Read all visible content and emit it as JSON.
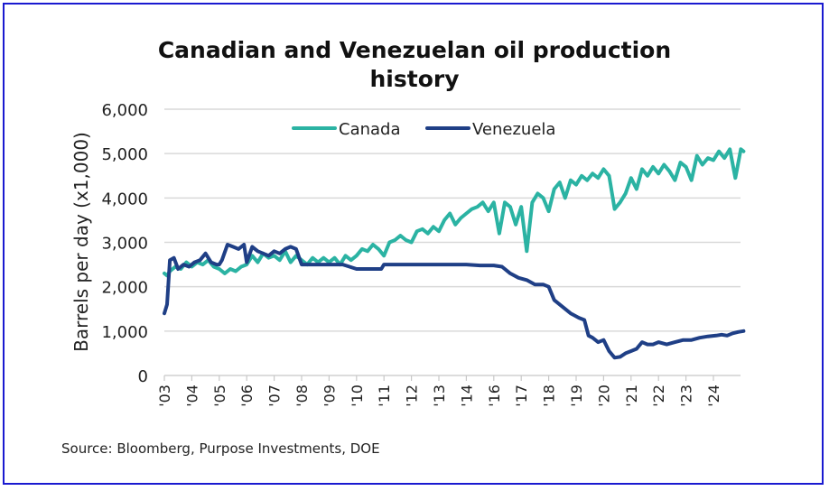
{
  "chart_data": {
    "type": "line",
    "title": "Canadian and Venezuelan oil production history",
    "title_lines": [
      "Canadian and Venezuelan oil production",
      "history"
    ],
    "xlabel": "",
    "ylabel": "Barrels per day (x1,000)",
    "ylim": [
      0,
      6000
    ],
    "yticks": [
      0,
      1000,
      2000,
      3000,
      4000,
      5000,
      6000
    ],
    "ytick_labels": [
      "0",
      "1,000",
      "2,000",
      "3,000",
      "4,000",
      "5,000",
      "6,000"
    ],
    "xtick_labels": [
      "'03",
      "'04",
      "'05",
      "'06",
      "'07",
      "'08",
      "'09",
      "'10",
      "'11",
      "'12",
      "'13",
      "'14",
      "'16",
      "'17",
      "'18",
      "'19",
      "'20",
      "'21",
      "'22",
      "'23",
      "'24"
    ],
    "x_unit": "tick index (each tick = one labeled year)",
    "grid": "horizontal",
    "legend_position": "top-center",
    "series": [
      {
        "name": "Canada",
        "color": "#2bb3a3",
        "points": [
          [
            0,
            2300
          ],
          [
            0.1,
            2250
          ],
          [
            0.2,
            2350
          ],
          [
            0.4,
            2450
          ],
          [
            0.6,
            2400
          ],
          [
            0.8,
            2550
          ],
          [
            1.0,
            2450
          ],
          [
            1.2,
            2550
          ],
          [
            1.4,
            2500
          ],
          [
            1.6,
            2600
          ],
          [
            1.8,
            2450
          ],
          [
            2.0,
            2400
          ],
          [
            2.2,
            2300
          ],
          [
            2.4,
            2400
          ],
          [
            2.6,
            2350
          ],
          [
            2.8,
            2450
          ],
          [
            3.0,
            2500
          ],
          [
            3.2,
            2700
          ],
          [
            3.4,
            2550
          ],
          [
            3.6,
            2750
          ],
          [
            3.8,
            2650
          ],
          [
            4.0,
            2700
          ],
          [
            4.2,
            2600
          ],
          [
            4.4,
            2800
          ],
          [
            4.6,
            2550
          ],
          [
            4.8,
            2700
          ],
          [
            5.0,
            2600
          ],
          [
            5.2,
            2500
          ],
          [
            5.4,
            2650
          ],
          [
            5.6,
            2550
          ],
          [
            5.8,
            2650
          ],
          [
            6.0,
            2550
          ],
          [
            6.2,
            2650
          ],
          [
            6.4,
            2500
          ],
          [
            6.6,
            2700
          ],
          [
            6.8,
            2600
          ],
          [
            7.0,
            2700
          ],
          [
            7.2,
            2850
          ],
          [
            7.4,
            2800
          ],
          [
            7.6,
            2950
          ],
          [
            7.8,
            2850
          ],
          [
            8.0,
            2700
          ],
          [
            8.2,
            3000
          ],
          [
            8.4,
            3050
          ],
          [
            8.6,
            3150
          ],
          [
            8.8,
            3050
          ],
          [
            9.0,
            3000
          ],
          [
            9.2,
            3250
          ],
          [
            9.4,
            3300
          ],
          [
            9.6,
            3200
          ],
          [
            9.8,
            3350
          ],
          [
            10.0,
            3250
          ],
          [
            10.2,
            3500
          ],
          [
            10.4,
            3650
          ],
          [
            10.6,
            3400
          ],
          [
            10.8,
            3550
          ],
          [
            11.0,
            3650
          ],
          [
            11.2,
            3750
          ],
          [
            11.4,
            3800
          ],
          [
            11.6,
            3900
          ],
          [
            11.8,
            3700
          ],
          [
            12.0,
            3900
          ],
          [
            12.2,
            3200
          ],
          [
            12.4,
            3900
          ],
          [
            12.6,
            3800
          ],
          [
            12.8,
            3400
          ],
          [
            13.0,
            3800
          ],
          [
            13.2,
            2800
          ],
          [
            13.4,
            3900
          ],
          [
            13.6,
            4100
          ],
          [
            13.8,
            4000
          ],
          [
            14.0,
            3700
          ],
          [
            14.2,
            4200
          ],
          [
            14.4,
            4350
          ],
          [
            14.6,
            4000
          ],
          [
            14.8,
            4400
          ],
          [
            15.0,
            4300
          ],
          [
            15.2,
            4500
          ],
          [
            15.4,
            4400
          ],
          [
            15.6,
            4550
          ],
          [
            15.8,
            4450
          ],
          [
            16.0,
            4650
          ],
          [
            16.2,
            4500
          ],
          [
            16.4,
            3750
          ],
          [
            16.6,
            3900
          ],
          [
            16.8,
            4100
          ],
          [
            17.0,
            4450
          ],
          [
            17.2,
            4200
          ],
          [
            17.4,
            4650
          ],
          [
            17.6,
            4500
          ],
          [
            17.8,
            4700
          ],
          [
            18.0,
            4550
          ],
          [
            18.2,
            4750
          ],
          [
            18.4,
            4600
          ],
          [
            18.6,
            4400
          ],
          [
            18.8,
            4800
          ],
          [
            19.0,
            4700
          ],
          [
            19.2,
            4400
          ],
          [
            19.4,
            4950
          ],
          [
            19.6,
            4750
          ],
          [
            19.8,
            4900
          ],
          [
            20.0,
            4850
          ],
          [
            20.2,
            5050
          ],
          [
            20.4,
            4900
          ],
          [
            20.6,
            5100
          ],
          [
            20.8,
            4450
          ],
          [
            21.0,
            5100
          ],
          [
            21.1,
            5050
          ]
        ]
      },
      {
        "name": "Venezuela",
        "color": "#1f3f86",
        "points": [
          [
            0,
            1400
          ],
          [
            0.1,
            1600
          ],
          [
            0.2,
            2600
          ],
          [
            0.35,
            2650
          ],
          [
            0.5,
            2400
          ],
          [
            0.7,
            2500
          ],
          [
            0.9,
            2450
          ],
          [
            1.1,
            2550
          ],
          [
            1.3,
            2600
          ],
          [
            1.5,
            2750
          ],
          [
            1.7,
            2550
          ],
          [
            1.9,
            2500
          ],
          [
            2.0,
            2500
          ],
          [
            2.1,
            2600
          ],
          [
            2.3,
            2950
          ],
          [
            2.5,
            2900
          ],
          [
            2.7,
            2850
          ],
          [
            2.9,
            2950
          ],
          [
            3.0,
            2550
          ],
          [
            3.2,
            2900
          ],
          [
            3.4,
            2800
          ],
          [
            3.6,
            2750
          ],
          [
            3.8,
            2700
          ],
          [
            4.0,
            2800
          ],
          [
            4.2,
            2750
          ],
          [
            4.4,
            2850
          ],
          [
            4.6,
            2900
          ],
          [
            4.8,
            2850
          ],
          [
            5.0,
            2500
          ],
          [
            5.2,
            2500
          ],
          [
            5.5,
            2500
          ],
          [
            6.0,
            2500
          ],
          [
            6.5,
            2500
          ],
          [
            7.0,
            2400
          ],
          [
            7.5,
            2400
          ],
          [
            7.9,
            2400
          ],
          [
            8.0,
            2500
          ],
          [
            9.0,
            2500
          ],
          [
            10.0,
            2500
          ],
          [
            11.0,
            2500
          ],
          [
            11.5,
            2480
          ],
          [
            12.0,
            2480
          ],
          [
            12.3,
            2450
          ],
          [
            12.6,
            2300
          ],
          [
            12.9,
            2200
          ],
          [
            13.2,
            2150
          ],
          [
            13.5,
            2050
          ],
          [
            13.8,
            2050
          ],
          [
            14.0,
            2000
          ],
          [
            14.2,
            1700
          ],
          [
            14.5,
            1550
          ],
          [
            14.8,
            1400
          ],
          [
            15.1,
            1300
          ],
          [
            15.3,
            1250
          ],
          [
            15.45,
            900
          ],
          [
            15.6,
            850
          ],
          [
            15.8,
            750
          ],
          [
            16.0,
            800
          ],
          [
            16.2,
            550
          ],
          [
            16.4,
            400
          ],
          [
            16.6,
            420
          ],
          [
            16.8,
            500
          ],
          [
            17.0,
            550
          ],
          [
            17.2,
            600
          ],
          [
            17.4,
            750
          ],
          [
            17.6,
            700
          ],
          [
            17.8,
            700
          ],
          [
            18.0,
            750
          ],
          [
            18.3,
            700
          ],
          [
            18.6,
            750
          ],
          [
            18.9,
            800
          ],
          [
            19.2,
            800
          ],
          [
            19.5,
            850
          ],
          [
            19.8,
            880
          ],
          [
            20.1,
            900
          ],
          [
            20.3,
            920
          ],
          [
            20.5,
            900
          ],
          [
            20.7,
            950
          ],
          [
            20.9,
            980
          ],
          [
            21.1,
            1000
          ]
        ]
      }
    ]
  },
  "source_text": "Source: Bloomberg, Purpose Investments, DOE"
}
